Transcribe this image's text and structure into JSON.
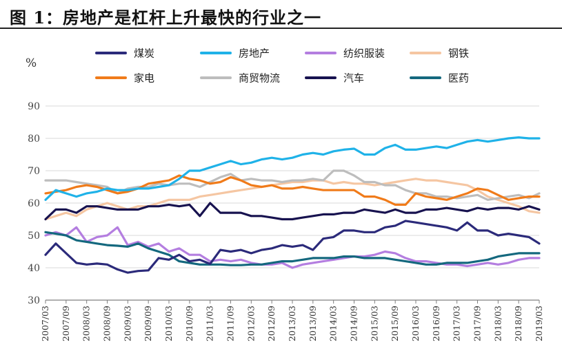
{
  "figure": {
    "title": "图  1：房地产是杠杆上升最快的行业之一"
  },
  "chart_data": {
    "type": "line",
    "title": "",
    "ylabel": "%",
    "xlabel": "",
    "ylim": [
      30,
      90
    ],
    "yticks": [
      30,
      40,
      50,
      60,
      70,
      80,
      90
    ],
    "x": [
      "2007/03",
      "2007/06",
      "2007/09",
      "2007/12",
      "2008/03",
      "2008/06",
      "2008/09",
      "2008/12",
      "2009/03",
      "2009/06",
      "2009/09",
      "2009/12",
      "2010/03",
      "2010/06",
      "2010/09",
      "2010/12",
      "2011/03",
      "2011/06",
      "2011/09",
      "2011/12",
      "2012/03",
      "2012/06",
      "2012/09",
      "2012/12",
      "2013/03",
      "2013/06",
      "2013/09",
      "2013/12",
      "2014/03",
      "2014/06",
      "2014/09",
      "2014/12",
      "2015/03",
      "2015/06",
      "2015/09",
      "2015/12",
      "2016/03",
      "2016/06",
      "2016/09",
      "2016/12",
      "2017/03",
      "2017/06",
      "2017/09",
      "2017/12",
      "2018/03",
      "2018/06",
      "2018/09",
      "2018/12",
      "2019/03"
    ],
    "xticks": [
      "2007/03",
      "2007/09",
      "2008/03",
      "2008/09",
      "2009/03",
      "2009/09",
      "2010/03",
      "2010/09",
      "2011/03",
      "2011/09",
      "2012/03",
      "2012/09",
      "2013/03",
      "2013/09",
      "2014/03",
      "2014/09",
      "2015/03",
      "2015/09",
      "2016/03",
      "2016/09",
      "2017/03",
      "2017/09",
      "2018/03",
      "2018/09",
      "2019/03"
    ],
    "grid": "horizontal",
    "legend_position": "top",
    "series": [
      {
        "name": "煤炭",
        "color": "#2b2a7a",
        "values": [
          44,
          47.5,
          44.5,
          41.5,
          41,
          41.3,
          41,
          39.5,
          38.5,
          39,
          39.2,
          43,
          42.5,
          44,
          42,
          42.5,
          41.2,
          45.5,
          45,
          45.5,
          44.5,
          45.5,
          46,
          47,
          46.5,
          47,
          45.5,
          49,
          49.5,
          51.5,
          51.5,
          51,
          51,
          52.5,
          53,
          54.5,
          54,
          53.5,
          53,
          52.5,
          51.5,
          54,
          51.5,
          51.5,
          50,
          50.5,
          50,
          49.5,
          47.5
        ]
      },
      {
        "name": "房地产",
        "color": "#1fb2e8",
        "values": [
          61,
          64,
          63,
          62,
          63,
          63.5,
          64.5,
          64,
          64,
          64.5,
          64.5,
          65,
          65.5,
          67.5,
          70,
          70,
          71,
          72,
          73,
          72,
          72.5,
          73.5,
          74,
          73.5,
          74,
          75,
          75.5,
          75,
          76,
          76.5,
          76.8,
          75,
          75,
          77,
          78,
          76.5,
          76.5,
          77,
          77.5,
          77,
          78,
          79,
          79.5,
          79,
          79.5,
          80,
          80.3,
          80,
          80
        ]
      },
      {
        "name": "纺织服装",
        "color": "#b47ee0",
        "values": [
          50,
          51,
          50,
          52.5,
          48,
          49.5,
          50,
          52.5,
          47,
          48,
          46.5,
          47.5,
          45,
          46,
          44,
          44,
          42,
          42.5,
          42,
          42.5,
          41.5,
          41,
          41,
          41.5,
          40,
          41,
          41.5,
          42,
          42.5,
          43,
          43.5,
          43.5,
          44,
          45,
          44.5,
          43,
          42,
          42,
          41.5,
          41,
          41,
          40.5,
          41,
          41.5,
          41,
          41.5,
          42.5,
          43,
          43
        ]
      },
      {
        "name": "钢铁",
        "color": "#f5c6a2",
        "values": [
          55,
          56,
          57,
          56,
          58,
          59,
          60,
          59,
          58,
          59,
          59,
          60,
          61,
          61,
          61,
          62,
          62.5,
          63,
          63.5,
          64,
          64.5,
          65,
          65.5,
          66,
          66.5,
          66.5,
          67,
          67,
          66,
          66.5,
          66,
          66,
          65.5,
          66,
          66.5,
          67,
          67.5,
          67,
          67,
          66.5,
          66,
          65.5,
          64,
          62,
          61,
          60,
          59,
          57.5,
          57
        ]
      },
      {
        "name": "家电",
        "color": "#f07b1a",
        "values": [
          63,
          63.5,
          64,
          65,
          65.5,
          65,
          64,
          63,
          63.5,
          64.5,
          66,
          66.5,
          67,
          68.5,
          67.5,
          67,
          66,
          66.5,
          68,
          67,
          65.5,
          65,
          65.5,
          64.5,
          64.5,
          65,
          64.5,
          64,
          64,
          64,
          64,
          62,
          62,
          61,
          59.5,
          59.5,
          63,
          62,
          61.5,
          61,
          62,
          63,
          64.5,
          64,
          62.5,
          61,
          61.5,
          62,
          62
        ]
      },
      {
        "name": "商贸物流",
        "color": "#bdbdbd",
        "values": [
          67,
          67,
          67,
          66.5,
          66,
          65.5,
          65,
          63,
          64.5,
          65,
          65,
          66,
          65.5,
          66,
          66,
          65,
          66.5,
          68,
          69,
          67,
          67.5,
          67,
          67,
          66.5,
          67,
          67,
          67.5,
          67,
          70,
          70,
          68.5,
          66.5,
          66.5,
          65.5,
          65.5,
          64,
          63,
          63,
          62,
          62,
          61.5,
          62,
          62.5,
          61,
          61.5,
          62,
          62.5,
          61.5,
          63
        ]
      },
      {
        "name": "汽车",
        "color": "#17124f",
        "values": [
          55,
          58,
          58,
          57,
          59,
          59,
          58.5,
          58,
          58,
          58,
          59,
          59,
          59.5,
          59,
          59.5,
          56,
          60,
          57,
          57,
          57,
          56,
          56,
          55.5,
          55,
          55,
          55.5,
          56,
          56.5,
          56.5,
          57,
          57,
          58,
          57.5,
          57,
          58,
          57,
          57,
          58,
          58,
          58.5,
          58,
          57.5,
          58.5,
          58,
          58.5,
          58.5,
          58,
          59,
          58
        ]
      },
      {
        "name": "医药",
        "color": "#14687e",
        "values": [
          51,
          50.5,
          50,
          48.5,
          48,
          47.5,
          47,
          46.8,
          46.5,
          47.5,
          46,
          45,
          44,
          42,
          41.5,
          41,
          41,
          41,
          40.8,
          40.8,
          41,
          41,
          41.5,
          42,
          42,
          42.5,
          43,
          43,
          43,
          43.5,
          43.5,
          43,
          43,
          43,
          42.5,
          42,
          41.5,
          41,
          41,
          41.5,
          41.5,
          41.5,
          42,
          42.5,
          43.5,
          44,
          44.5,
          44.5,
          44.5
        ]
      }
    ]
  }
}
